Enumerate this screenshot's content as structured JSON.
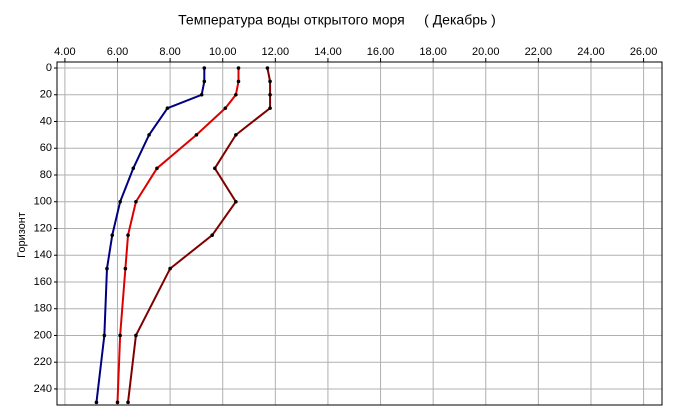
{
  "chart_data": {
    "type": "line",
    "title": "Температура воды открытого моря     ( Декабрь )",
    "y_label": "Горизонт",
    "y": [
      0,
      10,
      20,
      30,
      50,
      75,
      100,
      125,
      150,
      200,
      250
    ],
    "series": [
      {
        "color": "#000080",
        "values": [
          9.3,
          9.3,
          9.2,
          7.9,
          7.2,
          6.6,
          6.1,
          5.8,
          5.6,
          5.5,
          5.2
        ]
      },
      {
        "color": "#dd0000",
        "values": [
          10.6,
          10.6,
          10.5,
          10.1,
          9.0,
          7.5,
          6.7,
          6.4,
          6.3,
          6.1,
          6.0
        ]
      },
      {
        "color": "#800000",
        "values": [
          11.7,
          11.8,
          11.8,
          11.8,
          10.5,
          9.7,
          10.5,
          9.6,
          8.0,
          6.7,
          6.4
        ]
      }
    ],
    "xlim": [
      3.7,
      26.7
    ],
    "xticks": [
      {
        "value": 4,
        "label": "4.00"
      },
      {
        "value": 6,
        "label": "6.00"
      },
      {
        "value": 8,
        "label": "8.00"
      },
      {
        "value": 10,
        "label": "10.00"
      },
      {
        "value": 12,
        "label": "12.00"
      },
      {
        "value": 14,
        "label": "14.00"
      },
      {
        "value": 16,
        "label": "16.00"
      },
      {
        "value": 18,
        "label": "18.00"
      },
      {
        "value": 20,
        "label": "20.00"
      },
      {
        "value": 22,
        "label": "22.00"
      },
      {
        "value": 24,
        "label": "24.00"
      },
      {
        "value": 26,
        "label": "26.00"
      }
    ],
    "ylim": [
      -4.5,
      252
    ],
    "yticks": [
      0,
      20,
      40,
      60,
      80,
      100,
      120,
      140,
      160,
      180,
      200,
      220,
      240
    ],
    "y_inverted": true,
    "grid": true
  }
}
